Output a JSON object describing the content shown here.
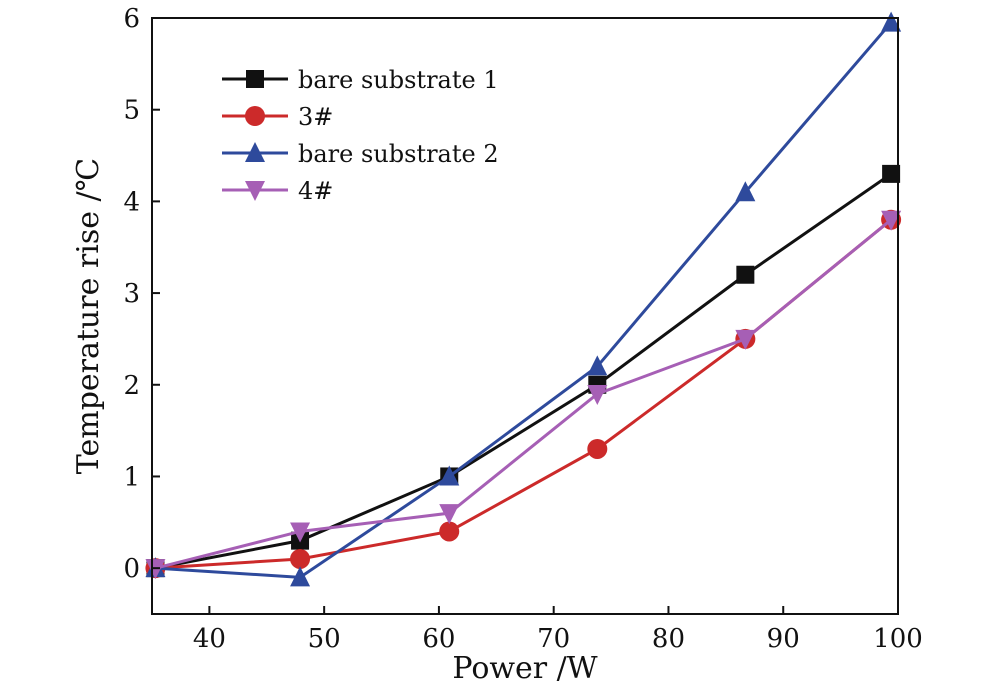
{
  "chart_data": {
    "type": "line",
    "title": "",
    "xlabel": "Power /W",
    "ylabel": "Temperature rise /℃",
    "xlim": [
      35,
      100
    ],
    "ylim": [
      -0.5,
      6
    ],
    "xticks": [
      40,
      50,
      60,
      70,
      80,
      90,
      100
    ],
    "yticks": [
      0,
      1,
      2,
      3,
      4,
      5,
      6
    ],
    "x": [
      35.3,
      47.9,
      60.9,
      73.8,
      86.7,
      99.4
    ],
    "legend_position": "top-left",
    "series": [
      {
        "name": "bare substrate 1",
        "color": "#111111",
        "marker": "square",
        "values": [
          0,
          0.3,
          1.0,
          2.0,
          3.2,
          4.3
        ]
      },
      {
        "name": "3#",
        "color": "#cc2a2a",
        "marker": "circle",
        "values": [
          0,
          0.1,
          0.4,
          1.3,
          2.5,
          3.8
        ]
      },
      {
        "name": "bare substrate 2",
        "color": "#2e4a9c",
        "marker": "triangle-up",
        "values": [
          0,
          -0.1,
          1.0,
          2.2,
          4.1,
          5.95
        ]
      },
      {
        "name": "4#",
        "color": "#a65fb5",
        "marker": "triangle-down",
        "values": [
          0,
          0.4,
          0.6,
          1.9,
          2.5,
          3.8
        ]
      }
    ]
  }
}
